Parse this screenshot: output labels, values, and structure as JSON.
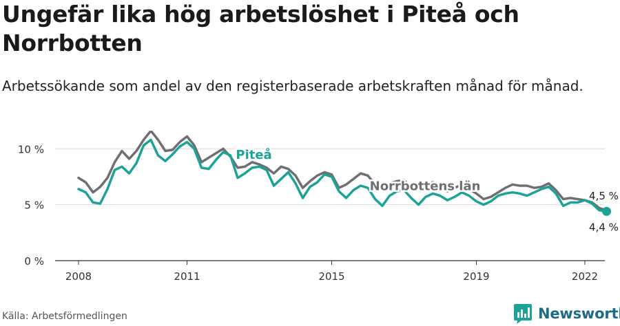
{
  "title": "Ungefär lika hög arbetslöshet i Piteå och Norrbotten",
  "subtitle": "Arbetssökande som andel av den registerbaserade arbetskraften månad för månad.",
  "source": "Källa: Arbetsförmedlingen",
  "brand": "Newsworthy",
  "colors": {
    "pitea": "#1aa396",
    "norrbotten": "#6f6e73",
    "grid": "#d9d9d9",
    "brand": "#1d6b86"
  },
  "chart_data": {
    "type": "line",
    "ylim": [
      0,
      11
    ],
    "yticks": [
      0,
      5,
      10
    ],
    "ytick_labels": [
      "0 %",
      "5 %",
      "10 %"
    ],
    "xlim": [
      2008,
      2023.2
    ],
    "xticks": [
      2008,
      2011,
      2015,
      2019,
      2022
    ],
    "xtick_labels": [
      "2008",
      "2011",
      "2015",
      "2019",
      "2022"
    ],
    "grid": true,
    "legend": "inline labels",
    "end_labels": {
      "norrbotten": "4,5 %",
      "pitea": "4,4 %"
    },
    "series": [
      {
        "name": "Norrbottens län",
        "key": "norrbotten",
        "x": [
          2008.0,
          2008.2,
          2008.4,
          2008.6,
          2008.8,
          2009.0,
          2009.2,
          2009.4,
          2009.6,
          2009.8,
          2010.0,
          2010.2,
          2010.4,
          2010.6,
          2010.8,
          2011.0,
          2011.2,
          2011.4,
          2011.6,
          2011.8,
          2012.0,
          2012.2,
          2012.4,
          2012.6,
          2012.8,
          2013.0,
          2013.2,
          2013.4,
          2013.6,
          2013.8,
          2014.0,
          2014.2,
          2014.4,
          2014.6,
          2014.8,
          2015.0,
          2015.2,
          2015.4,
          2015.6,
          2015.8,
          2016.0,
          2016.2,
          2016.4,
          2016.6,
          2016.8,
          2017.0,
          2017.2,
          2017.4,
          2017.6,
          2017.8,
          2018.0,
          2018.2,
          2018.4,
          2018.6,
          2018.8,
          2019.0,
          2019.2,
          2019.4,
          2019.6,
          2019.8,
          2020.0,
          2020.2,
          2020.4,
          2020.6,
          2020.8,
          2021.0,
          2021.2,
          2021.4,
          2021.6,
          2021.8,
          2022.0,
          2022.2,
          2022.4,
          2022.6
        ],
        "values": [
          7.4,
          7.0,
          6.1,
          6.6,
          7.4,
          8.8,
          9.8,
          9.1,
          9.8,
          10.8,
          11.6,
          10.8,
          9.8,
          9.9,
          10.6,
          11.1,
          10.3,
          8.8,
          9.2,
          9.6,
          10.0,
          9.3,
          8.3,
          8.4,
          8.8,
          8.6,
          8.3,
          7.8,
          8.4,
          8.2,
          7.6,
          6.5,
          7.1,
          7.6,
          7.9,
          7.7,
          6.5,
          6.8,
          7.3,
          7.8,
          7.6,
          6.8,
          6.5,
          6.9,
          7.1,
          7.2,
          6.5,
          6.6,
          6.9,
          7.0,
          6.7,
          6.2,
          6.5,
          6.8,
          6.4,
          6.0,
          5.5,
          5.7,
          6.1,
          6.5,
          6.8,
          6.7,
          6.7,
          6.5,
          6.6,
          6.9,
          6.3,
          5.5,
          5.6,
          5.5,
          5.4,
          5.2,
          4.7,
          4.5
        ]
      },
      {
        "name": "Piteå",
        "key": "pitea",
        "x": [
          2008.0,
          2008.2,
          2008.4,
          2008.6,
          2008.8,
          2009.0,
          2009.2,
          2009.4,
          2009.6,
          2009.8,
          2010.0,
          2010.2,
          2010.4,
          2010.6,
          2010.8,
          2011.0,
          2011.2,
          2011.4,
          2011.6,
          2011.8,
          2012.0,
          2012.2,
          2012.4,
          2012.6,
          2012.8,
          2013.0,
          2013.2,
          2013.4,
          2013.6,
          2013.8,
          2014.0,
          2014.2,
          2014.4,
          2014.6,
          2014.8,
          2015.0,
          2015.2,
          2015.4,
          2015.6,
          2015.8,
          2016.0,
          2016.2,
          2016.4,
          2016.6,
          2016.8,
          2017.0,
          2017.2,
          2017.4,
          2017.6,
          2017.8,
          2018.0,
          2018.2,
          2018.4,
          2018.6,
          2018.8,
          2019.0,
          2019.2,
          2019.4,
          2019.6,
          2019.8,
          2020.0,
          2020.2,
          2020.4,
          2020.6,
          2020.8,
          2021.0,
          2021.2,
          2021.4,
          2021.6,
          2021.8,
          2022.0,
          2022.2,
          2022.4,
          2022.6
        ],
        "values": [
          6.4,
          6.1,
          5.2,
          5.1,
          6.4,
          8.1,
          8.4,
          7.8,
          8.7,
          10.3,
          10.8,
          9.4,
          8.9,
          9.5,
          10.2,
          10.6,
          10.0,
          8.3,
          8.2,
          9.0,
          9.7,
          9.4,
          7.4,
          7.8,
          8.3,
          8.4,
          8.1,
          6.7,
          7.3,
          7.9,
          6.9,
          5.6,
          6.6,
          7.0,
          7.7,
          7.5,
          6.2,
          5.6,
          6.3,
          6.7,
          6.5,
          5.5,
          4.9,
          5.8,
          6.2,
          6.3,
          5.6,
          5.0,
          5.7,
          6.0,
          5.8,
          5.4,
          5.7,
          6.1,
          5.8,
          5.3,
          5.0,
          5.3,
          5.8,
          6.0,
          6.1,
          6.0,
          5.8,
          6.1,
          6.4,
          6.6,
          6.0,
          4.9,
          5.2,
          5.2,
          5.4,
          5.1,
          4.5,
          4.4
        ]
      }
    ]
  }
}
